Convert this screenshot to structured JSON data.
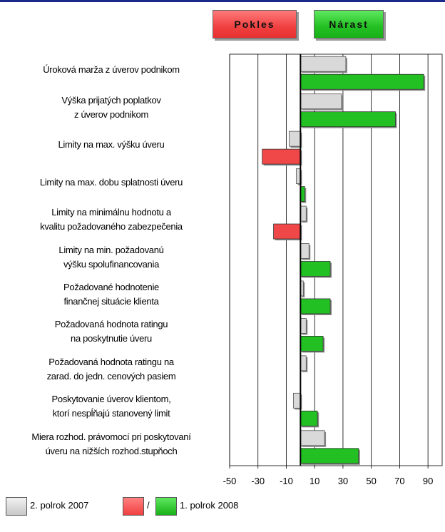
{
  "header": {
    "decrease_label": "Pokles",
    "increase_label": "Nárast"
  },
  "chart_data": {
    "type": "bar",
    "orientation": "horizontal",
    "xlim": [
      -50,
      100
    ],
    "x_ticks": [
      "-50",
      "-30",
      "-10",
      "10",
      "30",
      "50",
      "70",
      "90"
    ],
    "grid": "vertical",
    "categories": [
      [
        "Úroková marža z úverov podnikom"
      ],
      [
        "Výška prijatých poplatkov",
        "z úverov podnikom"
      ],
      [
        "Limity na max. výšku úveru"
      ],
      [
        "Limity na max. dobu splatnosti úveru"
      ],
      [
        "Limity na minimálnu hodnotu a",
        "kvalitu požadovaného zabezpečenia"
      ],
      [
        "Limity na min. požadovanú",
        "výšku spolufinancovania"
      ],
      [
        "Požadované hodnotenie",
        "finančnej situácie klienta"
      ],
      [
        "Požadovaná hodnota ratingu",
        "na poskytnutie úveru"
      ],
      [
        "Požadovaná hodnota ratingu na",
        "zarad. do jedn. cenových pasiem"
      ],
      [
        "Poskytovanie úverov klientom,",
        "ktorí nespĺňajú stanovený limit"
      ],
      [
        "Miera rozhod. právomocí pri poskytovaní",
        "úveru na nižších rozhod.stupňoch"
      ]
    ],
    "series": [
      {
        "name": "2. polrok 2007",
        "color": "#d9d9d9",
        "values": [
          32,
          29,
          -8,
          -3,
          4,
          6,
          2,
          4,
          4,
          -5,
          17
        ]
      },
      {
        "name": "1. polrok 2008",
        "color_positive": "#22c022",
        "color_negative": "#f04848",
        "values": [
          87,
          67,
          -27,
          3,
          -19,
          21,
          21,
          16,
          0,
          12,
          41
        ]
      }
    ]
  },
  "legend": {
    "prev_label": "2. polrok 2007",
    "separator": "/",
    "curr_label": "1. polrok 2008"
  }
}
